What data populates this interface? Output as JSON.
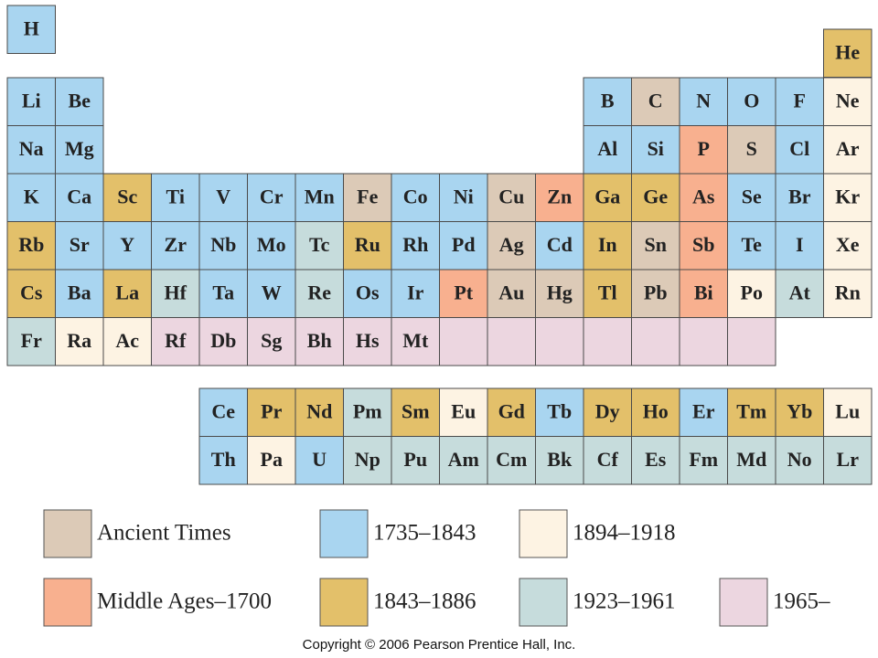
{
  "legend": [
    {
      "label": "Ancient Times",
      "color": "#dccab7"
    },
    {
      "label": "1735–1843",
      "color": "#a9d5f0"
    },
    {
      "label": "1894–1918",
      "color": "#fdf3e3"
    },
    {
      "label": "Middle Ages–1700",
      "color": "#f8b08f"
    },
    {
      "label": "1843–1886",
      "color": "#e3c06a"
    },
    {
      "label": "1923–1961",
      "color": "#c6dcdc"
    },
    {
      "label": "1965–",
      "color": "#ecd6e0"
    }
  ],
  "table": {
    "rows": [
      [
        {
          "symbol": "H",
          "era": 1
        },
        null,
        null,
        null,
        null,
        null,
        null,
        null,
        null,
        null,
        null,
        null,
        null,
        null,
        null,
        null,
        null,
        {
          "symbol": "He",
          "era": 4
        }
      ],
      [
        {
          "symbol": "Li",
          "era": 1
        },
        {
          "symbol": "Be",
          "era": 1
        },
        null,
        null,
        null,
        null,
        null,
        null,
        null,
        null,
        null,
        null,
        {
          "symbol": "B",
          "era": 1
        },
        {
          "symbol": "C",
          "era": 0
        },
        {
          "symbol": "N",
          "era": 1
        },
        {
          "symbol": "O",
          "era": 1
        },
        {
          "symbol": "F",
          "era": 1
        },
        {
          "symbol": "Ne",
          "era": 2
        }
      ],
      [
        {
          "symbol": "Na",
          "era": 1
        },
        {
          "symbol": "Mg",
          "era": 1
        },
        null,
        null,
        null,
        null,
        null,
        null,
        null,
        null,
        null,
        null,
        {
          "symbol": "Al",
          "era": 1
        },
        {
          "symbol": "Si",
          "era": 1
        },
        {
          "symbol": "P",
          "era": 3
        },
        {
          "symbol": "S",
          "era": 0
        },
        {
          "symbol": "Cl",
          "era": 1
        },
        {
          "symbol": "Ar",
          "era": 2
        }
      ],
      [
        {
          "symbol": "K",
          "era": 1
        },
        {
          "symbol": "Ca",
          "era": 1
        },
        {
          "symbol": "Sc",
          "era": 4
        },
        {
          "symbol": "Ti",
          "era": 1
        },
        {
          "symbol": "V",
          "era": 1
        },
        {
          "symbol": "Cr",
          "era": 1
        },
        {
          "symbol": "Mn",
          "era": 1
        },
        {
          "symbol": "Fe",
          "era": 0
        },
        {
          "symbol": "Co",
          "era": 1
        },
        {
          "symbol": "Ni",
          "era": 1
        },
        {
          "symbol": "Cu",
          "era": 0
        },
        {
          "symbol": "Zn",
          "era": 3
        },
        {
          "symbol": "Ga",
          "era": 4
        },
        {
          "symbol": "Ge",
          "era": 4
        },
        {
          "symbol": "As",
          "era": 3
        },
        {
          "symbol": "Se",
          "era": 1
        },
        {
          "symbol": "Br",
          "era": 1
        },
        {
          "symbol": "Kr",
          "era": 2
        }
      ],
      [
        {
          "symbol": "Rb",
          "era": 4
        },
        {
          "symbol": "Sr",
          "era": 1
        },
        {
          "symbol": "Y",
          "era": 1
        },
        {
          "symbol": "Zr",
          "era": 1
        },
        {
          "symbol": "Nb",
          "era": 1
        },
        {
          "symbol": "Mo",
          "era": 1
        },
        {
          "symbol": "Tc",
          "era": 5
        },
        {
          "symbol": "Ru",
          "era": 4
        },
        {
          "symbol": "Rh",
          "era": 1
        },
        {
          "symbol": "Pd",
          "era": 1
        },
        {
          "symbol": "Ag",
          "era": 0
        },
        {
          "symbol": "Cd",
          "era": 1
        },
        {
          "symbol": "In",
          "era": 4
        },
        {
          "symbol": "Sn",
          "era": 0
        },
        {
          "symbol": "Sb",
          "era": 3
        },
        {
          "symbol": "Te",
          "era": 1
        },
        {
          "symbol": "I",
          "era": 1
        },
        {
          "symbol": "Xe",
          "era": 2
        }
      ],
      [
        {
          "symbol": "Cs",
          "era": 4
        },
        {
          "symbol": "Ba",
          "era": 1
        },
        {
          "symbol": "La",
          "era": 4
        },
        {
          "symbol": "Hf",
          "era": 5
        },
        {
          "symbol": "Ta",
          "era": 1
        },
        {
          "symbol": "W",
          "era": 1
        },
        {
          "symbol": "Re",
          "era": 5
        },
        {
          "symbol": "Os",
          "era": 1
        },
        {
          "symbol": "Ir",
          "era": 1
        },
        {
          "symbol": "Pt",
          "era": 3
        },
        {
          "symbol": "Au",
          "era": 0
        },
        {
          "symbol": "Hg",
          "era": 0
        },
        {
          "symbol": "Tl",
          "era": 4
        },
        {
          "symbol": "Pb",
          "era": 0
        },
        {
          "symbol": "Bi",
          "era": 3
        },
        {
          "symbol": "Po",
          "era": 2
        },
        {
          "symbol": "At",
          "era": 5
        },
        {
          "symbol": "Rn",
          "era": 2
        }
      ],
      [
        {
          "symbol": "Fr",
          "era": 5
        },
        {
          "symbol": "Ra",
          "era": 2
        },
        {
          "symbol": "Ac",
          "era": 2
        },
        {
          "symbol": "Rf",
          "era": 6
        },
        {
          "symbol": "Db",
          "era": 6
        },
        {
          "symbol": "Sg",
          "era": 6
        },
        {
          "symbol": "Bh",
          "era": 6
        },
        {
          "symbol": "Hs",
          "era": 6
        },
        {
          "symbol": "Mt",
          "era": 6
        },
        {
          "era": 6
        },
        {
          "era": 6
        },
        {
          "era": 6
        },
        {
          "era": 6
        },
        {
          "era": 6
        },
        {
          "era": 6
        },
        {
          "era": 6
        },
        null,
        null
      ]
    ]
  },
  "f_block": {
    "rows": [
      [
        {
          "symbol": "Ce",
          "era": 1
        },
        {
          "symbol": "Pr",
          "era": 4
        },
        {
          "symbol": "Nd",
          "era": 4
        },
        {
          "symbol": "Pm",
          "era": 5
        },
        {
          "symbol": "Sm",
          "era": 4
        },
        {
          "symbol": "Eu",
          "era": 2
        },
        {
          "symbol": "Gd",
          "era": 4
        },
        {
          "symbol": "Tb",
          "era": 1
        },
        {
          "symbol": "Dy",
          "era": 4
        },
        {
          "symbol": "Ho",
          "era": 4
        },
        {
          "symbol": "Er",
          "era": 1
        },
        {
          "symbol": "Tm",
          "era": 4
        },
        {
          "symbol": "Yb",
          "era": 4
        },
        {
          "symbol": "Lu",
          "era": 2
        }
      ],
      [
        {
          "symbol": "Th",
          "era": 1
        },
        {
          "symbol": "Pa",
          "era": 2
        },
        {
          "symbol": "U",
          "era": 1
        },
        {
          "symbol": "Np",
          "era": 5
        },
        {
          "symbol": "Pu",
          "era": 5
        },
        {
          "symbol": "Am",
          "era": 5
        },
        {
          "symbol": "Cm",
          "era": 5
        },
        {
          "symbol": "Bk",
          "era": 5
        },
        {
          "symbol": "Cf",
          "era": 5
        },
        {
          "symbol": "Es",
          "era": 5
        },
        {
          "symbol": "Fm",
          "era": 5
        },
        {
          "symbol": "Md",
          "era": 5
        },
        {
          "symbol": "No",
          "era": 5
        },
        {
          "symbol": "Lr",
          "era": 5
        }
      ]
    ]
  },
  "footer": "Copyright © 2006 Pearson Prentice Hall, Inc."
}
